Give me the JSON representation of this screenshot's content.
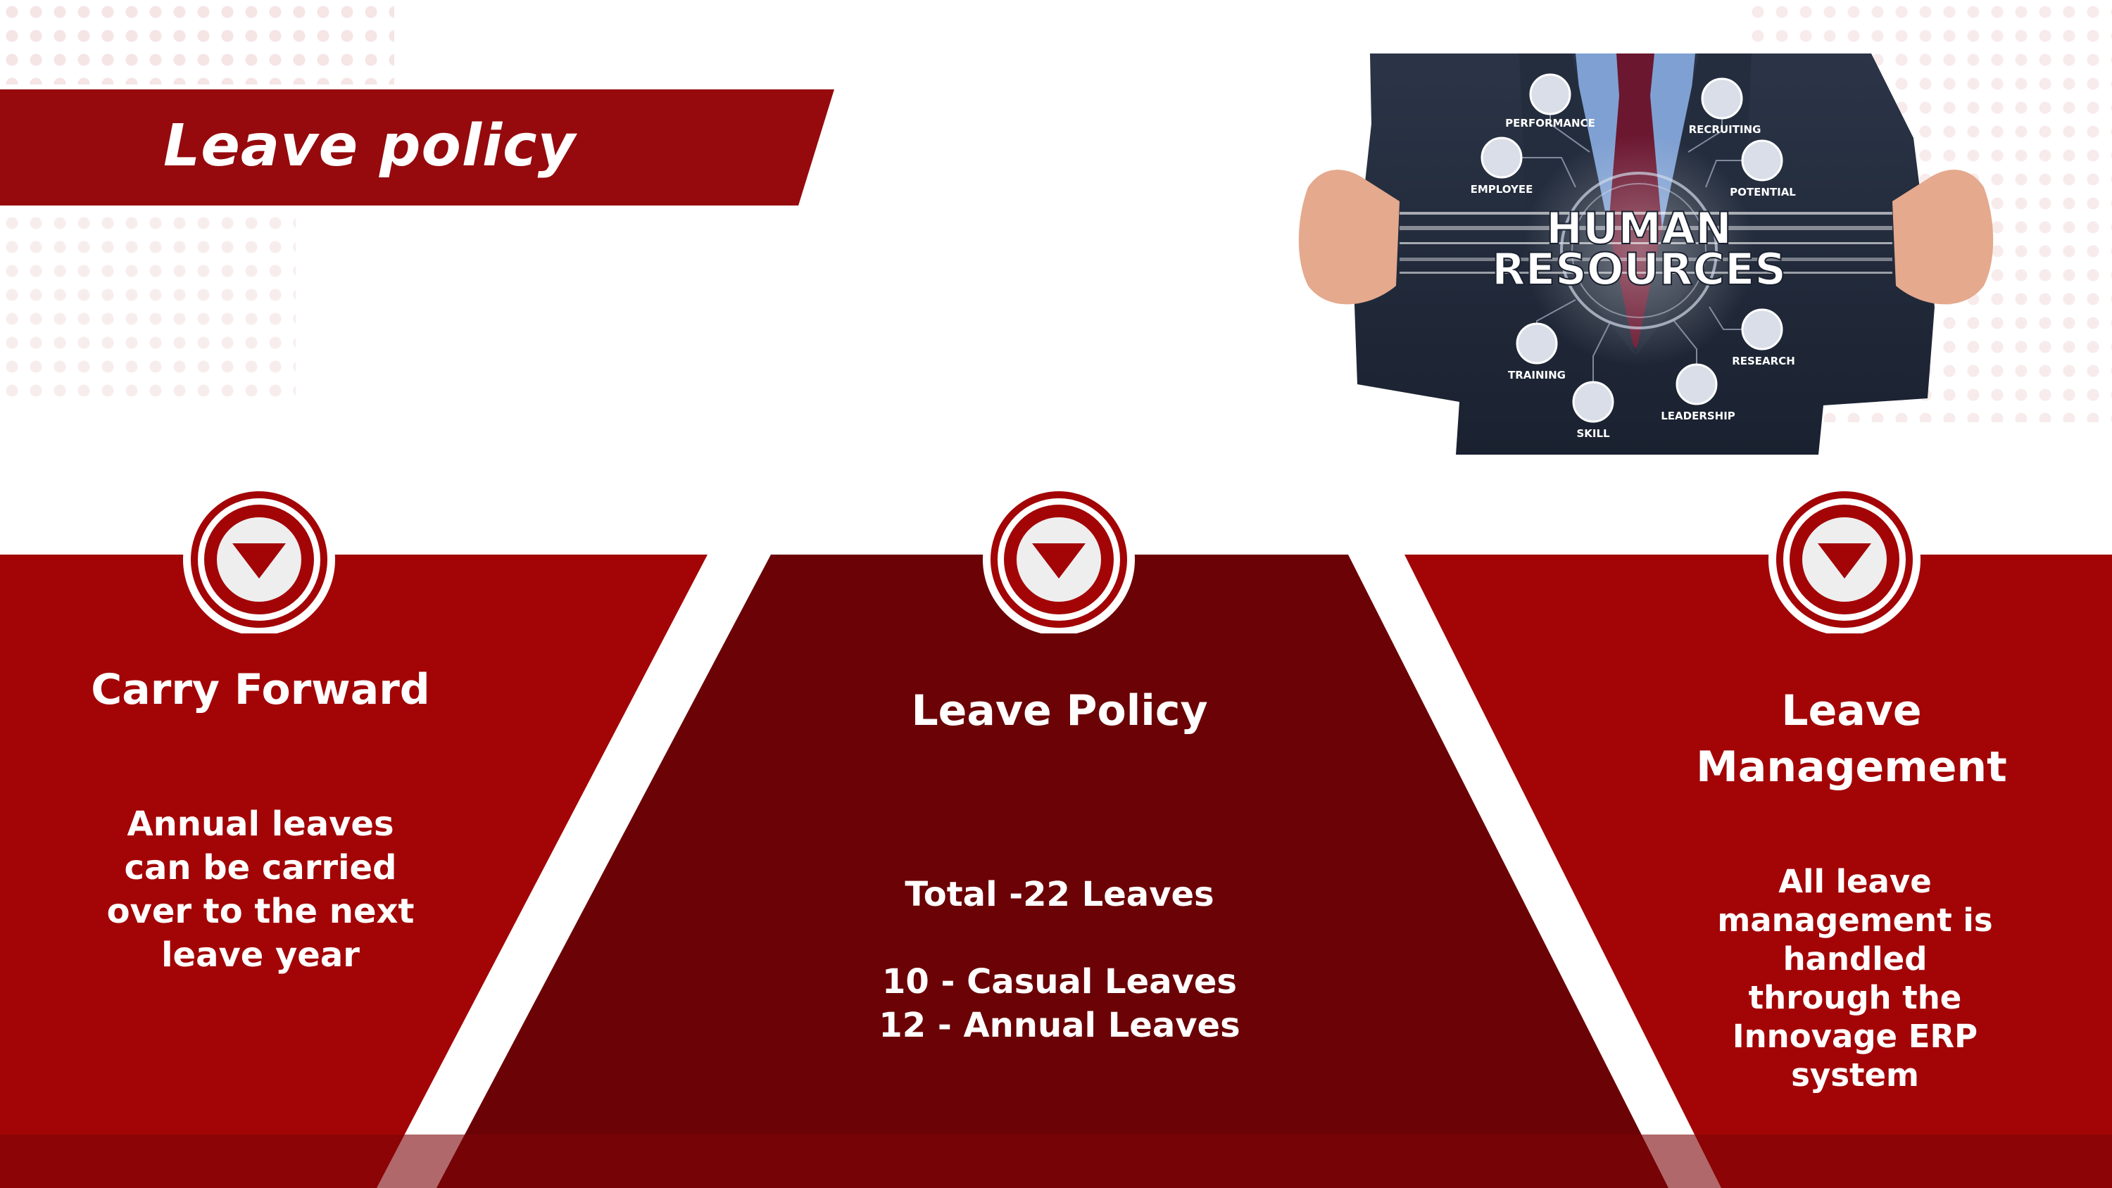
{
  "title": "Leave policy",
  "image": {
    "heading_line1": "HUMAN",
    "heading_line2": "RESOURCES",
    "nodes": [
      "PERFORMANCE",
      "RECRUITING",
      "EMPLOYEE",
      "POTENTIAL",
      "TRAINING",
      "RESEARCH",
      "SKILL",
      "LEADERSHIP"
    ]
  },
  "panels": [
    {
      "heading": "Carry Forward",
      "body": [
        "Annual  leaves",
        "can be carried",
        "over to the next",
        "leave year"
      ]
    },
    {
      "heading": "Leave Policy",
      "body": [
        "Total -22 Leaves",
        "",
        "10 - Casual Leaves",
        "12 - Annual Leaves"
      ]
    },
    {
      "heading": [
        "Leave",
        "Management"
      ],
      "body": [
        "All leave",
        "management is",
        "handled",
        "through the",
        "Innovage ERP",
        "system"
      ]
    }
  ],
  "colors": {
    "accent": "#a30507",
    "dark_accent": "#6b0306",
    "banner": "#960a0d"
  }
}
